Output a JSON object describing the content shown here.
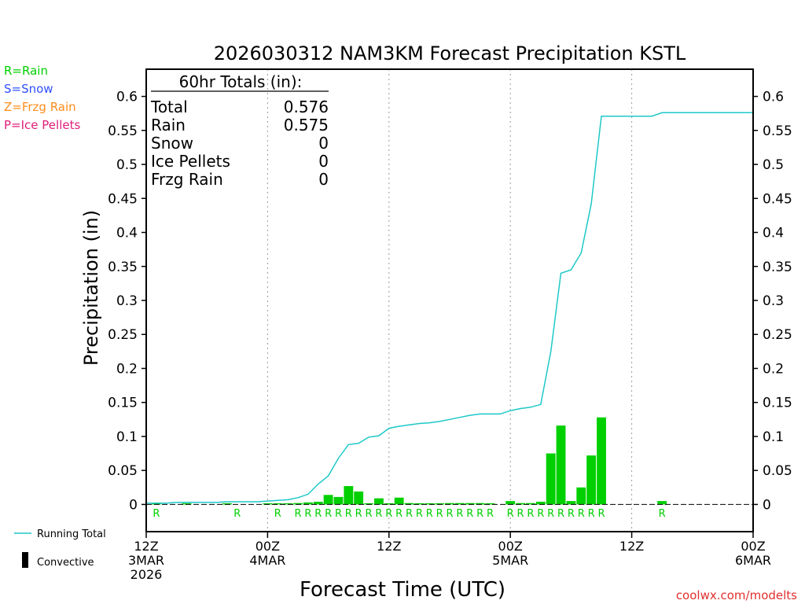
{
  "colors": {
    "rain": "#00d000",
    "snow": "#3050ff",
    "frzg": "#ff8c1a",
    "ice": "#e0207a",
    "running": "#1ec8c8",
    "credit": "#e03030",
    "axis": "#000000"
  },
  "chart_data": {
    "type": "bar",
    "title": "2026030312 NAM3KM Forecast Precipitation KSTL",
    "xlabel": "Forecast Time (UTC)",
    "ylabel": "Precipitation (in)",
    "ylim": [
      -0.04,
      0.64
    ],
    "xlim_hours": [
      0,
      60
    ],
    "y_ticks": [
      0,
      0.05,
      0.1,
      0.15,
      0.2,
      0.25,
      0.3,
      0.35,
      0.4,
      0.45,
      0.5,
      0.55,
      0.6
    ],
    "y_tick_labels": [
      "0",
      "0.05",
      "0.1",
      "0.15",
      "0.2",
      "0.25",
      "0.3",
      "0.35",
      "0.4",
      "0.45",
      "0.5",
      "0.55",
      "0.6"
    ],
    "x_ticks": [
      {
        "hour": 0,
        "lines": [
          "12Z",
          "3MAR",
          "2026"
        ]
      },
      {
        "hour": 12,
        "lines": [
          "00Z",
          "4MAR"
        ]
      },
      {
        "hour": 24,
        "lines": [
          "12Z"
        ]
      },
      {
        "hour": 36,
        "lines": [
          "00Z",
          "5MAR"
        ]
      },
      {
        "hour": 48,
        "lines": [
          "12Z"
        ]
      },
      {
        "hour": 60,
        "lines": [
          "00Z",
          "6MAR"
        ]
      }
    ],
    "grid_hours": [
      12,
      24,
      36,
      48
    ],
    "hourly_bars": [
      {
        "hour": 1,
        "value": 0.001
      },
      {
        "hour": 4,
        "value": 0.001
      },
      {
        "hour": 8,
        "value": 0.001
      },
      {
        "hour": 12,
        "value": 0.001
      },
      {
        "hour": 13,
        "value": 0.001
      },
      {
        "hour": 14,
        "value": 0.001
      },
      {
        "hour": 15,
        "value": 0.002
      },
      {
        "hour": 16,
        "value": 0.003
      },
      {
        "hour": 17,
        "value": 0.004
      },
      {
        "hour": 18,
        "value": 0.014
      },
      {
        "hour": 19,
        "value": 0.011
      },
      {
        "hour": 20,
        "value": 0.027
      },
      {
        "hour": 21,
        "value": 0.019
      },
      {
        "hour": 22,
        "value": 0.001
      },
      {
        "hour": 23,
        "value": 0.009
      },
      {
        "hour": 24,
        "value": 0.001
      },
      {
        "hour": 25,
        "value": 0.01
      },
      {
        "hour": 26,
        "value": 0.002
      },
      {
        "hour": 27,
        "value": 0.001
      },
      {
        "hour": 28,
        "value": 0.001
      },
      {
        "hour": 29,
        "value": 0.001
      },
      {
        "hour": 30,
        "value": 0.002
      },
      {
        "hour": 31,
        "value": 0.002
      },
      {
        "hour": 32,
        "value": 0.002
      },
      {
        "hour": 33,
        "value": 0.002
      },
      {
        "hour": 34,
        "value": 0.001
      },
      {
        "hour": 36,
        "value": 0.005
      },
      {
        "hour": 37,
        "value": 0.002
      },
      {
        "hour": 38,
        "value": 0.002
      },
      {
        "hour": 39,
        "value": 0.004
      },
      {
        "hour": 40,
        "value": 0.075
      },
      {
        "hour": 41,
        "value": 0.116
      },
      {
        "hour": 42,
        "value": 0.005
      },
      {
        "hour": 43,
        "value": 0.025
      },
      {
        "hour": 44,
        "value": 0.072
      },
      {
        "hour": 45,
        "value": 0.128
      },
      {
        "hour": 51,
        "value": 0.005
      }
    ],
    "running_total": {
      "name": "Running Total",
      "hours": [
        0,
        1,
        2,
        3,
        4,
        5,
        6,
        7,
        8,
        9,
        10,
        11,
        12,
        13,
        14,
        15,
        16,
        17,
        18,
        19,
        20,
        21,
        22,
        23,
        24,
        25,
        26,
        27,
        28,
        29,
        30,
        31,
        32,
        33,
        34,
        35,
        36,
        37,
        38,
        39,
        40,
        41,
        42,
        43,
        44,
        45,
        46,
        47,
        48,
        49,
        50,
        51,
        52,
        53,
        54,
        55,
        56,
        57,
        58,
        59,
        60
      ],
      "values": [
        0.002,
        0.002,
        0.002,
        0.003,
        0.003,
        0.003,
        0.003,
        0.003,
        0.004,
        0.004,
        0.004,
        0.004,
        0.005,
        0.006,
        0.007,
        0.01,
        0.015,
        0.03,
        0.042,
        0.068,
        0.088,
        0.09,
        0.099,
        0.101,
        0.112,
        0.115,
        0.117,
        0.119,
        0.12,
        0.122,
        0.125,
        0.128,
        0.131,
        0.133,
        0.133,
        0.133,
        0.138,
        0.141,
        0.143,
        0.147,
        0.225,
        0.34,
        0.345,
        0.37,
        0.442,
        0.571,
        0.571,
        0.571,
        0.571,
        0.571,
        0.571,
        0.576,
        0.576,
        0.576,
        0.576,
        0.576,
        0.576,
        0.576,
        0.576,
        0.576,
        0.576
      ]
    },
    "ptype_letters": [
      {
        "hour": 1,
        "letter": "R"
      },
      {
        "hour": 9,
        "letter": "R"
      },
      {
        "hour": 13,
        "letter": "R"
      },
      {
        "hour": 15,
        "letter": "R"
      },
      {
        "hour": 16,
        "letter": "R"
      },
      {
        "hour": 17,
        "letter": "R"
      },
      {
        "hour": 18,
        "letter": "R"
      },
      {
        "hour": 19,
        "letter": "R"
      },
      {
        "hour": 20,
        "letter": "R"
      },
      {
        "hour": 21,
        "letter": "R"
      },
      {
        "hour": 22,
        "letter": "R"
      },
      {
        "hour": 23,
        "letter": "R"
      },
      {
        "hour": 24,
        "letter": "R"
      },
      {
        "hour": 25,
        "letter": "R"
      },
      {
        "hour": 26,
        "letter": "R"
      },
      {
        "hour": 27,
        "letter": "R"
      },
      {
        "hour": 28,
        "letter": "R"
      },
      {
        "hour": 29,
        "letter": "R"
      },
      {
        "hour": 30,
        "letter": "R"
      },
      {
        "hour": 31,
        "letter": "R"
      },
      {
        "hour": 32,
        "letter": "R"
      },
      {
        "hour": 33,
        "letter": "R"
      },
      {
        "hour": 34,
        "letter": "R"
      },
      {
        "hour": 36,
        "letter": "R"
      },
      {
        "hour": 37,
        "letter": "R"
      },
      {
        "hour": 38,
        "letter": "R"
      },
      {
        "hour": 39,
        "letter": "R"
      },
      {
        "hour": 40,
        "letter": "R"
      },
      {
        "hour": 41,
        "letter": "R"
      },
      {
        "hour": 42,
        "letter": "R"
      },
      {
        "hour": 43,
        "letter": "R"
      },
      {
        "hour": 44,
        "letter": "R"
      },
      {
        "hour": 45,
        "letter": "R"
      },
      {
        "hour": 51,
        "letter": "R"
      }
    ],
    "totals_box": {
      "heading": "60hr Totals (in):",
      "rows": [
        {
          "label": "Total",
          "value": "0.576"
        },
        {
          "label": "Rain",
          "value": "0.575"
        },
        {
          "label": "Snow",
          "value": "0"
        },
        {
          "label": "Ice Pellets",
          "value": "0"
        },
        {
          "label": "Frzg Rain",
          "value": "0"
        }
      ]
    },
    "ptype_legend": [
      {
        "text": "R=Rain",
        "color_key": "rain"
      },
      {
        "text": "S=Snow",
        "color_key": "snow"
      },
      {
        "text": "Z=Frzg Rain",
        "color_key": "frzg"
      },
      {
        "text": "P=Ice Pellets",
        "color_key": "ice"
      }
    ],
    "series_legend": [
      {
        "text": "Running Total",
        "kind": "line"
      },
      {
        "text": "Convective",
        "kind": "bar"
      }
    ]
  },
  "credit": "coolwx.com/modelts"
}
